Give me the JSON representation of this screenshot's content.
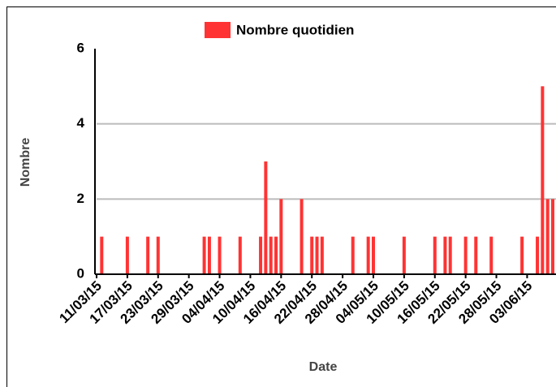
{
  "chart_data": {
    "type": "bar",
    "legend_label": "Nombre quotidien",
    "x_label": "Date",
    "y_label": "Nombre",
    "color": "#ff3333",
    "x": [
      "12/03/15",
      "17/03/15",
      "21/03/15",
      "23/03/15",
      "01/04/15",
      "02/04/15",
      "04/04/15",
      "08/04/15",
      "12/04/15",
      "13/04/15",
      "14/04/15",
      "15/04/15",
      "16/04/15",
      "20/04/15",
      "22/04/15",
      "23/04/15",
      "24/04/15",
      "30/04/15",
      "03/05/15",
      "04/05/15",
      "10/05/15",
      "16/05/15",
      "18/05/15",
      "19/05/15",
      "22/05/15",
      "24/05/15",
      "27/05/15",
      "02/06/15",
      "05/06/15",
      "06/06/15",
      "07/06/15",
      "08/06/15"
    ],
    "values": [
      1,
      1,
      1,
      1,
      1,
      1,
      1,
      1,
      1,
      3,
      1,
      1,
      2,
      2,
      1,
      1,
      1,
      1,
      1,
      1,
      1,
      1,
      1,
      1,
      1,
      1,
      1,
      1,
      1,
      5,
      2,
      2
    ],
    "xlim": [
      "11/03/15",
      "08/06/15"
    ],
    "xticks": [
      "11/03/15",
      "17/03/15",
      "23/03/15",
      "29/03/15",
      "04/04/15",
      "10/04/15",
      "16/04/15",
      "22/04/15",
      "28/04/15",
      "04/05/15",
      "10/05/15",
      "16/05/15",
      "22/05/15",
      "28/05/15",
      "03/06/15"
    ],
    "ylim": [
      0,
      6
    ],
    "yticks": [
      0,
      2,
      4,
      6
    ],
    "grid": true
  }
}
